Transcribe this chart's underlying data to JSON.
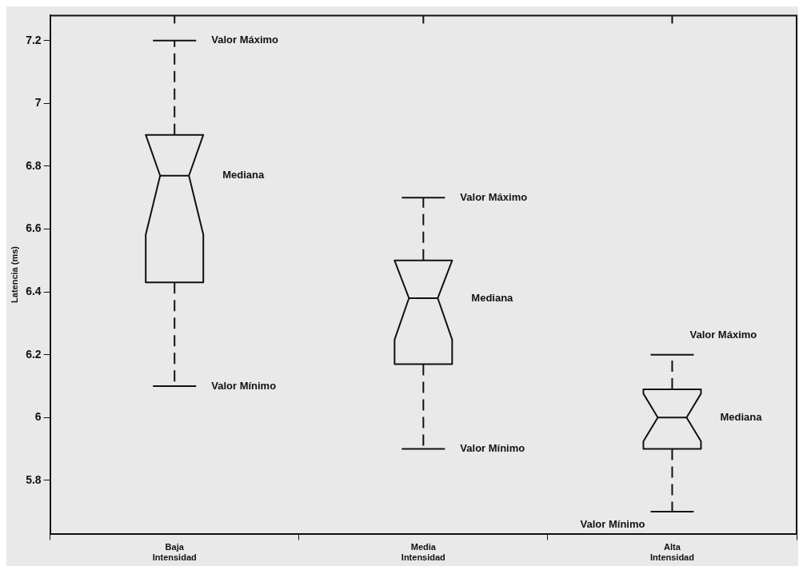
{
  "chart_data": {
    "type": "box",
    "ylabel": "Latencia (ms)",
    "categories": [
      "Baja Intensidad",
      "Media Intensidad",
      "Alta Intensidad"
    ],
    "boxes": [
      {
        "low": 6.1,
        "q1": 6.43,
        "median": 6.77,
        "q3": 6.9,
        "high": 7.2
      },
      {
        "low": 5.9,
        "q1": 6.17,
        "median": 6.38,
        "q3": 6.5,
        "high": 6.7
      },
      {
        "low": 5.7,
        "q1": 5.9,
        "median": 6.0,
        "q3": 6.09,
        "high": 6.2
      }
    ],
    "ylim": [
      5.63,
      7.28
    ],
    "yticks": [
      5.8,
      6,
      6.2,
      6.4,
      6.6,
      6.8,
      7,
      7.2
    ],
    "grid": false,
    "annotations": [
      "Valor Máximo",
      "Mediana",
      "Valor Mínimo",
      "Valor Máximo",
      "Mediana",
      "Valor Mínimo",
      "Valor Máximo",
      "Mediana",
      "Valor Mínimo"
    ]
  }
}
